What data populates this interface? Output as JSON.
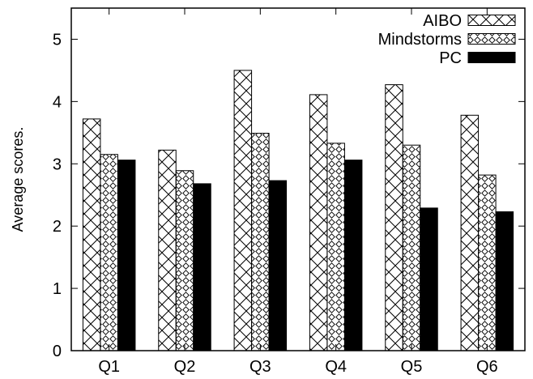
{
  "chart_data": {
    "type": "bar",
    "title": "",
    "xlabel": "",
    "ylabel": "Average scores.",
    "categories": [
      "Q1",
      "Q2",
      "Q3",
      "Q4",
      "Q5",
      "Q6"
    ],
    "series": [
      {
        "name": "AIBO",
        "values": [
          3.72,
          3.22,
          4.5,
          4.11,
          4.27,
          3.78
        ],
        "pattern": "crosshatch"
      },
      {
        "name": "Mindstorms",
        "values": [
          3.15,
          2.89,
          3.49,
          3.33,
          3.3,
          2.82
        ],
        "pattern": "dotted-diamond"
      },
      {
        "name": "PC",
        "values": [
          3.06,
          2.68,
          2.73,
          3.06,
          2.29,
          2.23
        ],
        "pattern": "solid"
      }
    ],
    "ylim": [
      0,
      5.5
    ],
    "yticks": [
      0,
      1,
      2,
      3,
      4,
      5
    ],
    "grid": false,
    "legend_position": "top-right",
    "colors": {
      "bar_stroke": "#000000",
      "pattern": "#000000",
      "solid": "#000000",
      "background": "#ffffff"
    }
  }
}
